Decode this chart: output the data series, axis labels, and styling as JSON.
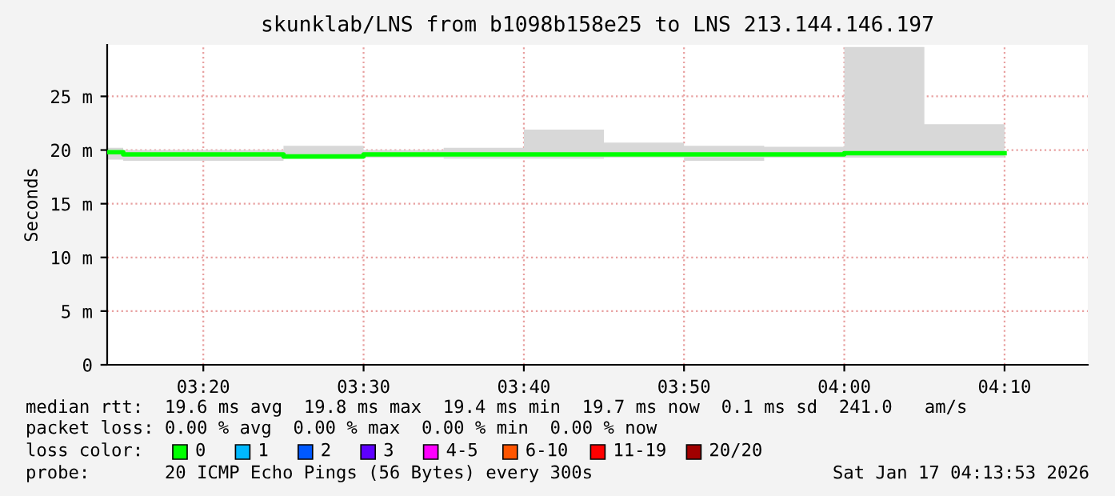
{
  "chart_data": {
    "type": "step",
    "title": "skunklab/LNS from b1098b158e25 to LNS 213.144.146.197",
    "ylabel": "Seconds",
    "x": [
      3.2333,
      3.25,
      3.3333,
      3.4167,
      3.5,
      3.5833,
      3.6667,
      3.75,
      3.8333,
      3.9167,
      4.0,
      4.0833,
      4.1667
    ],
    "series": [
      {
        "color": "#00ff00",
        "values": [
          19.8,
          19.6,
          19.6,
          19.4,
          19.6,
          19.6,
          19.6,
          19.6,
          19.6,
          19.6,
          19.7,
          19.7,
          19.7
        ],
        "upper": [
          20.2,
          20.0,
          20.0,
          20.4,
          20.0,
          20.2,
          21.9,
          20.7,
          20.4,
          20.3,
          29.6,
          22.4,
          22.4
        ],
        "lower": [
          19.1,
          19.0,
          19.0,
          19.3,
          19.3,
          19.2,
          19.2,
          19.3,
          19.0,
          19.3,
          19.3,
          19.3,
          19.3
        ]
      }
    ],
    "xlim": [
      3.2333,
      4.2533
    ],
    "xticks": [
      {
        "value": 3.3333,
        "label": "03:20"
      },
      {
        "value": 3.5,
        "label": "03:30"
      },
      {
        "value": 3.6667,
        "label": "03:40"
      },
      {
        "value": 3.8333,
        "label": "03:50"
      },
      {
        "value": 4.0,
        "label": "04:00"
      },
      {
        "value": 4.1667,
        "label": "04:10"
      }
    ],
    "ylim": [
      0,
      29.8
    ],
    "yticks": [
      0,
      {
        "value": 5,
        "label": "5 m"
      },
      {
        "value": 10,
        "label": "10 m"
      },
      {
        "value": 15,
        "label": "15 m"
      },
      {
        "value": 20,
        "label": "20 m"
      },
      {
        "value": 25,
        "label": "25 m"
      }
    ],
    "grid": true,
    "annotations": [
      "median rtt:  19.6 ms avg  19.8 ms max  19.4 ms min  19.7 ms now  0.1 ms sd  241.0   am/s",
      "packet loss: 0.00 % avg  0.00 % max  0.00 % min  0.00 % now",
      "loss color:",
      "0",
      "1",
      "2",
      "3",
      "4-5",
      "6-10",
      "11-19",
      "20/20",
      "probe:       20 ICMP Echo Pings (56 Bytes) every 300s",
      "Sat Jan 17 04:13:53 2026"
    ]
  }
}
